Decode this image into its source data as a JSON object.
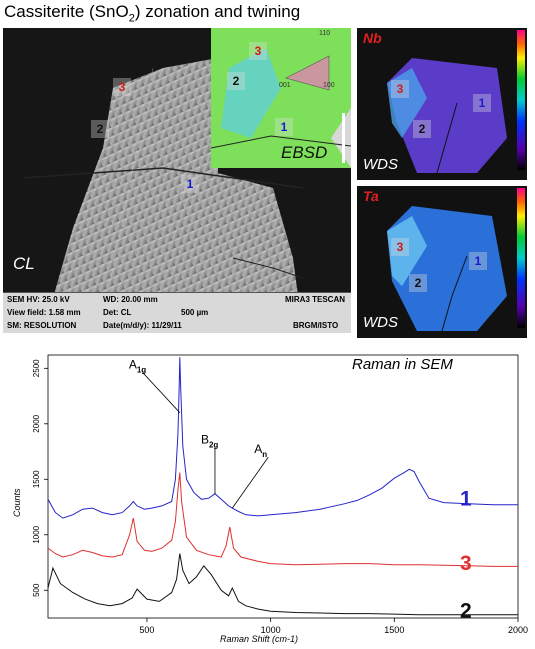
{
  "title": {
    "main_a": "Cassiterite (SnO",
    "sub": "2",
    "main_b": ") zonation and twining"
  },
  "cl_panel": {
    "label": "CL",
    "ebsd_label": "EBSD",
    "ebsd_legend": {
      "top": "110",
      "left": "001",
      "right": "100"
    },
    "markers": {
      "m1": "1",
      "m2": "2",
      "m3": "3"
    },
    "sem_bar": {
      "hv": "SEM HV: 25.0 kV",
      "wd": "WD: 20.00 mm",
      "brand": "MIRA3 TESCAN",
      "view_field": "View field: 1.58 mm",
      "det": "Det:  CL",
      "scale": "500 µm",
      "mode": "SM: RESOLUTION",
      "date": "Date(m/d/y): 11/29/11",
      "lab": "BRGM/ISTO"
    }
  },
  "nb_panel": {
    "element": "Nb",
    "label": "WDS",
    "markers": {
      "m1": "1",
      "m2": "2",
      "m3": "3"
    }
  },
  "ta_panel": {
    "element": "Ta",
    "label": "WDS",
    "markers": {
      "m1": "1",
      "m2": "2",
      "m3": "3"
    }
  },
  "chart_data": {
    "type": "line",
    "title": "Raman in SEM",
    "xlabel": "Raman  Shift (cm-1)",
    "ylabel": "Counts",
    "xlim": [
      100,
      2000
    ],
    "ylim": [
      250,
      2620
    ],
    "xticks": [
      500,
      1000,
      1500,
      2000
    ],
    "yticks": [
      500,
      1000,
      1500,
      2000,
      2500
    ],
    "grid": false,
    "peak_labels": [
      {
        "name": "A",
        "sub": "1g",
        "x": 633
      },
      {
        "name": "B",
        "sub": "2g",
        "x": 775
      },
      {
        "name": "A",
        "sub": "n",
        "x": 845
      }
    ],
    "series": [
      {
        "name": "1",
        "color": "#2424c8",
        "x": [
          100,
          130,
          160,
          200,
          240,
          280,
          320,
          360,
          400,
          430,
          445,
          460,
          490,
          520,
          560,
          600,
          615,
          625,
          630,
          633,
          636,
          645,
          660,
          690,
          720,
          750,
          775,
          800,
          830,
          845,
          870,
          900,
          950,
          1000,
          1100,
          1200,
          1300,
          1350,
          1400,
          1450,
          1500,
          1540,
          1560,
          1580,
          1600,
          1640,
          1700,
          1800,
          1900,
          2000
        ],
        "y": [
          1320,
          1200,
          1150,
          1180,
          1230,
          1240,
          1200,
          1180,
          1200,
          1260,
          1300,
          1260,
          1230,
          1240,
          1260,
          1300,
          1500,
          1900,
          2300,
          2600,
          2350,
          1800,
          1500,
          1380,
          1320,
          1330,
          1370,
          1320,
          1260,
          1240,
          1210,
          1180,
          1170,
          1180,
          1200,
          1230,
          1280,
          1310,
          1360,
          1420,
          1510,
          1560,
          1590,
          1570,
          1480,
          1330,
          1290,
          1280,
          1270,
          1270
        ]
      },
      {
        "name": "3",
        "color": "#e03030",
        "x": [
          100,
          130,
          160,
          200,
          240,
          280,
          320,
          360,
          400,
          430,
          445,
          460,
          490,
          520,
          560,
          600,
          615,
          625,
          633,
          640,
          660,
          700,
          750,
          800,
          820,
          835,
          850,
          880,
          950,
          1000,
          1100,
          1200,
          1300,
          1400,
          1500,
          1600,
          1700,
          1800,
          1900,
          2000
        ],
        "y": [
          880,
          830,
          800,
          820,
          860,
          840,
          810,
          800,
          820,
          1000,
          1150,
          940,
          860,
          850,
          880,
          950,
          1120,
          1400,
          1560,
          1300,
          980,
          860,
          820,
          800,
          900,
          1070,
          880,
          800,
          760,
          740,
          730,
          735,
          740,
          740,
          730,
          730,
          725,
          720,
          715,
          715
        ]
      },
      {
        "name": "2",
        "color": "#111111",
        "x": [
          100,
          120,
          150,
          200,
          250,
          300,
          350,
          400,
          440,
          460,
          500,
          550,
          600,
          620,
          633,
          645,
          670,
          700,
          730,
          760,
          800,
          830,
          845,
          870,
          900,
          950,
          1000,
          1100,
          1200,
          1300,
          1400,
          1500,
          1600,
          1700,
          1800,
          1900,
          2000
        ],
        "y": [
          520,
          700,
          560,
          480,
          420,
          380,
          360,
          380,
          430,
          510,
          420,
          400,
          480,
          600,
          830,
          680,
          560,
          620,
          720,
          640,
          500,
          450,
          520,
          400,
          360,
          330,
          310,
          300,
          295,
          290,
          290,
          285,
          280,
          280,
          280,
          280,
          280
        ]
      }
    ]
  }
}
